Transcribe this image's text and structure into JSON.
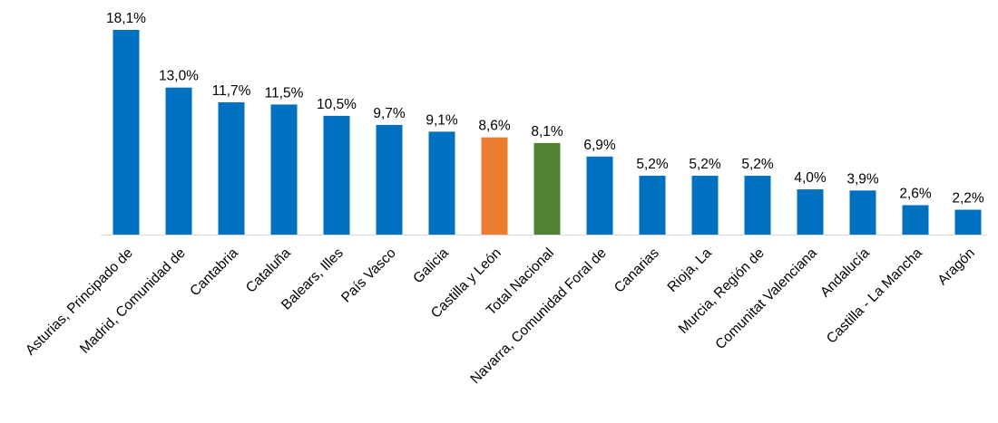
{
  "chart_data": {
    "type": "bar",
    "title": "",
    "xlabel": "",
    "ylabel": "",
    "ylim": [
      0,
      18.1
    ],
    "grid": false,
    "legend": "none",
    "categories": [
      "Asturias, Principado de",
      "Madrid, Comunidad de",
      "Cantabria",
      "Cataluña",
      "Balears, Illes",
      "País Vasco",
      "Galicia",
      "Castilla y León",
      "Total Nacional",
      "Navarra, Comunidad Foral de",
      "Canarias",
      "Rioja, La",
      "Murcia, Región de",
      "Comunitat Valenciana",
      "Andalucía",
      "Castilla - La Mancha",
      "Aragón"
    ],
    "values": [
      18.1,
      13.0,
      11.7,
      11.5,
      10.5,
      9.7,
      9.1,
      8.6,
      8.1,
      6.9,
      5.2,
      5.2,
      5.2,
      4.0,
      3.9,
      2.6,
      2.2
    ],
    "value_labels": [
      "18,1%",
      "13,0%",
      "11,7%",
      "11,5%",
      "10,5%",
      "9,7%",
      "9,1%",
      "8,6%",
      "8,1%",
      "6,9%",
      "5,2%",
      "5,2%",
      "5,2%",
      "4,0%",
      "3,9%",
      "2,6%",
      "2,2%"
    ],
    "colors": {
      "default": "#0070C0",
      "Castilla y León": "#ED7D31",
      "Total Nacional": "#548235"
    }
  }
}
